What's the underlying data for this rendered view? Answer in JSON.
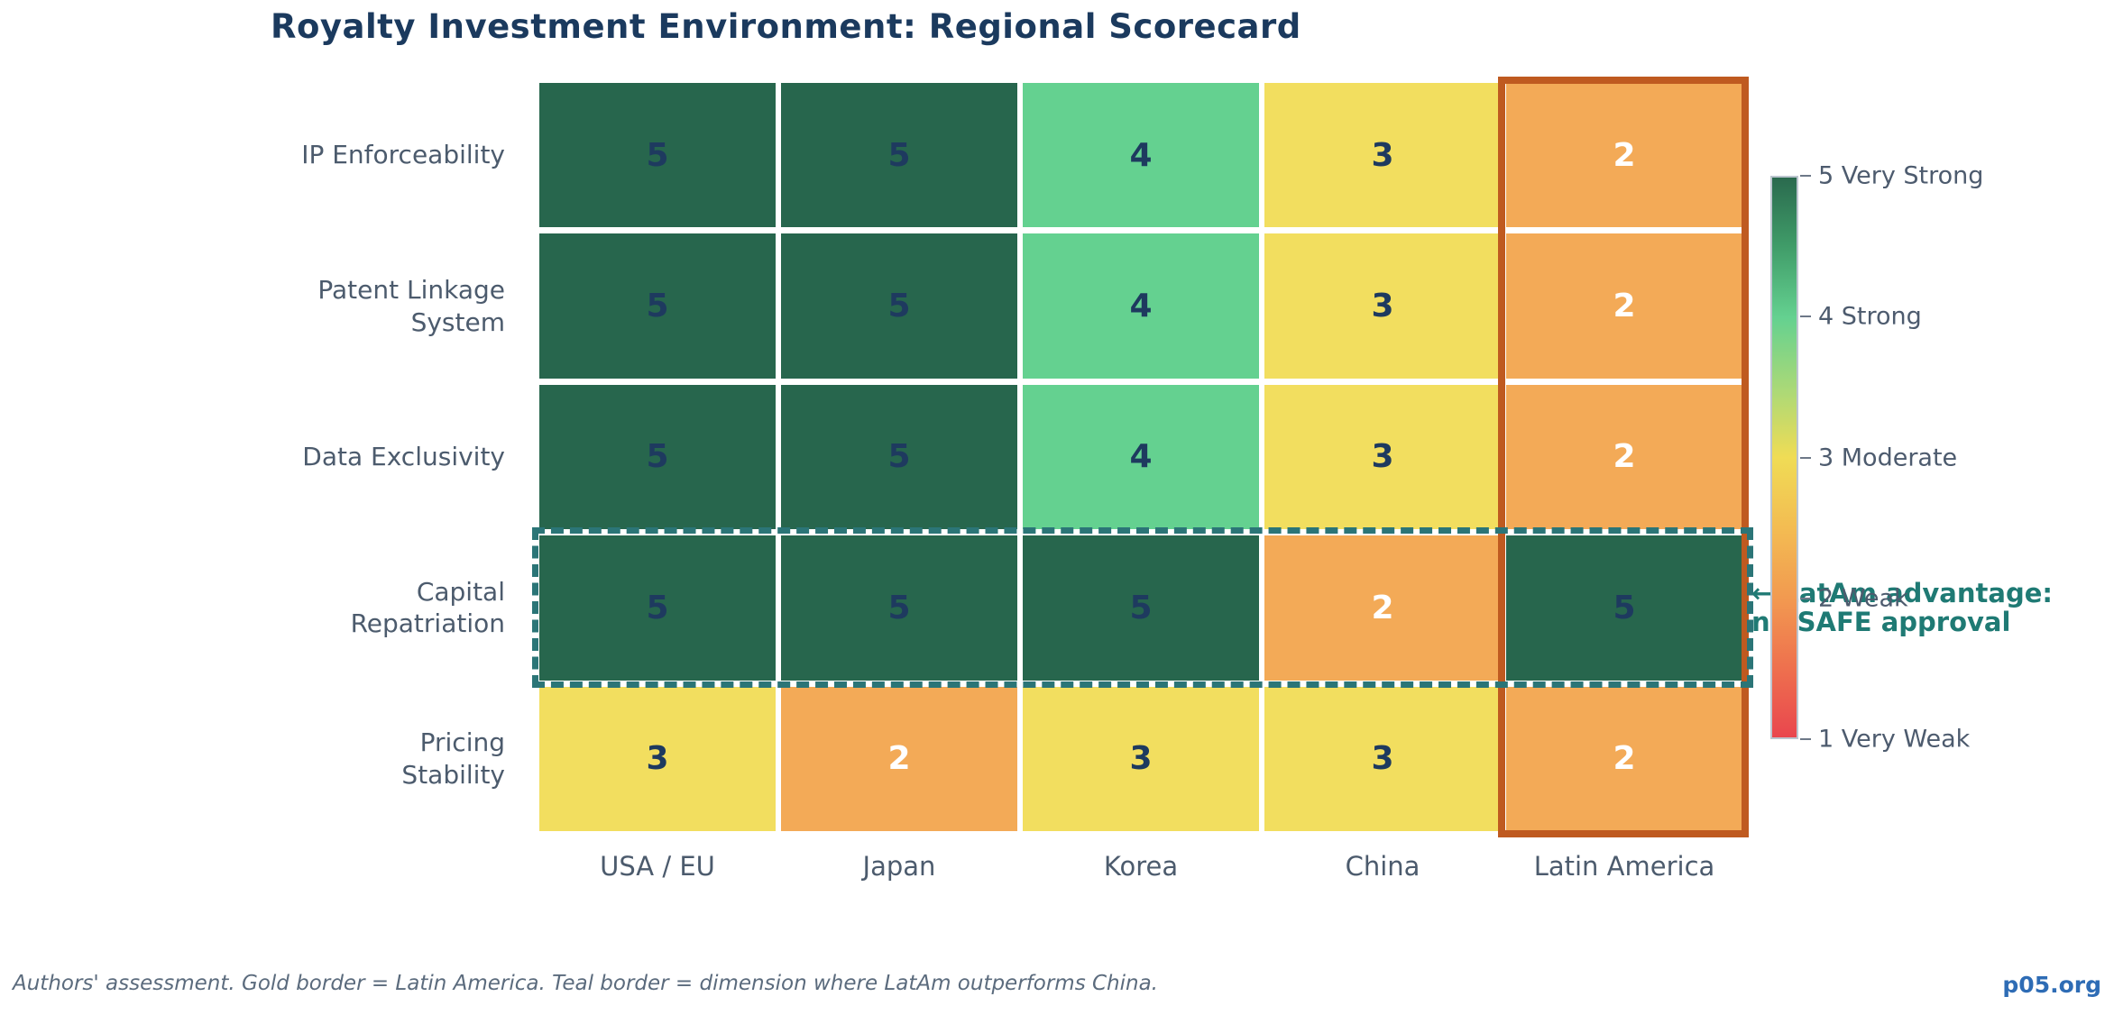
{
  "title": "Royalty Investment Environment: Regional Scorecard",
  "chart_data": {
    "type": "heatmap",
    "title": "Royalty Investment Environment: Regional Scorecard",
    "rows": [
      "IP Enforceability",
      "Patent Linkage\nSystem",
      "Data Exclusivity",
      "Capital\nRepatriation",
      "Pricing\nStability"
    ],
    "columns": [
      "USA / EU",
      "Japan",
      "Korea",
      "China",
      "Latin America"
    ],
    "values": [
      [
        5,
        5,
        4,
        3,
        2
      ],
      [
        5,
        5,
        4,
        3,
        2
      ],
      [
        5,
        5,
        4,
        3,
        2
      ],
      [
        5,
        5,
        5,
        2,
        5
      ],
      [
        3,
        2,
        3,
        3,
        2
      ]
    ],
    "scale_min": 1,
    "scale_max": 5,
    "legend_position": "right",
    "legend_ticks": [
      "5 Very Strong",
      "4 Strong",
      "3 Moderate",
      "2 Weak",
      "1 Very Weak"
    ],
    "value_colors": {
      "5": "#27664d",
      "4": "#64d190",
      "3": "#f2de5f",
      "2": "#f3aa57",
      "1": "#e9464e"
    },
    "value_text_colors": {
      "5": "#1e3a5f",
      "4": "#1e3a5f",
      "3": "#1e3a5f",
      "2": "#ffffff",
      "1": "#ffffff"
    },
    "highlights": {
      "column_border": {
        "column": "Latin America",
        "color": "#bf5a20"
      },
      "row_border": {
        "row": "Capital Repatriation",
        "color": "#2b7577",
        "style": "dashed"
      }
    },
    "annotation": {
      "line1": "← LatAm advantage:",
      "line2": "no SAFE approval",
      "color": "#1f7a74"
    }
  },
  "footer": {
    "note": "Authors' assessment. Gold border = Latin America. Teal border = dimension where LatAm outperforms China.",
    "brand": "p05.org"
  }
}
